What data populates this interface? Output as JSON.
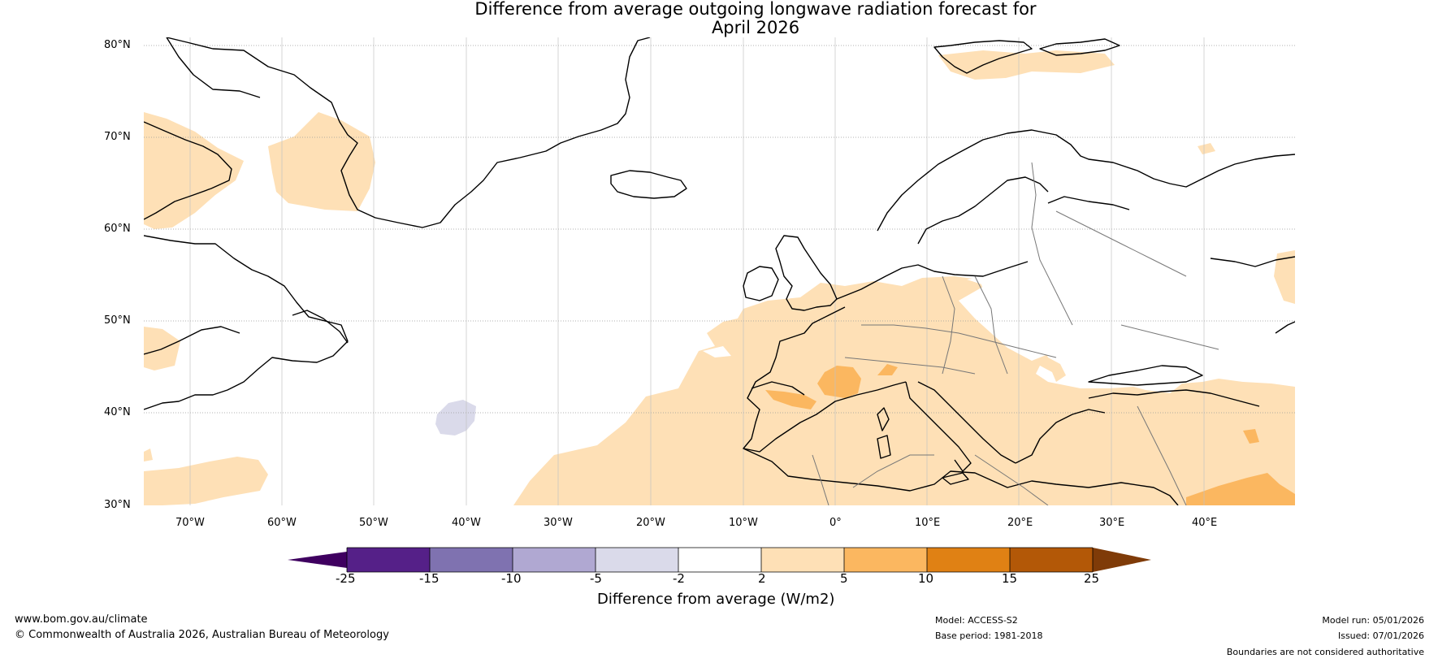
{
  "title_line1": "Difference from average outgoing longwave radiation forecast for",
  "title_line2": "April 2026",
  "lat_labels": [
    "80°N",
    "70°N",
    "60°N",
    "50°N",
    "40°N",
    "30°N"
  ],
  "lon_labels": [
    "70°W",
    "60°W",
    "50°W",
    "40°W",
    "30°W",
    "20°W",
    "10°W",
    "0°",
    "10°E",
    "20°E",
    "30°E",
    "40°E"
  ],
  "colorbar": {
    "ticks": [
      "-25",
      "-15",
      "-10",
      "-5",
      "-2",
      "2",
      "5",
      "10",
      "15",
      "25"
    ],
    "label": "Difference from average (W/m2)",
    "colors": {
      "below_min": "#3f0060",
      "c1": "#552088",
      "c2": "#7f72b0",
      "c3": "#b0a8d2",
      "c4": "#dadaea",
      "c5": "#ffffff",
      "c6": "#fee0b6",
      "c7": "#fbb760",
      "c8": "#e08114",
      "c9": "#b35807",
      "above_max": "#7f3b08"
    }
  },
  "footer": {
    "url": "www.bom.gov.au/climate",
    "copyright": "© Commonwealth of Australia 2026, Australian Bureau of Meteorology",
    "model": "Model: ACCESS-S2",
    "base_period": "Base period: 1981-2018",
    "model_run": "Model run: 05/01/2026",
    "issued": "Issued: 07/01/2026",
    "disclaimer": "Boundaries are not considered authoritative"
  }
}
